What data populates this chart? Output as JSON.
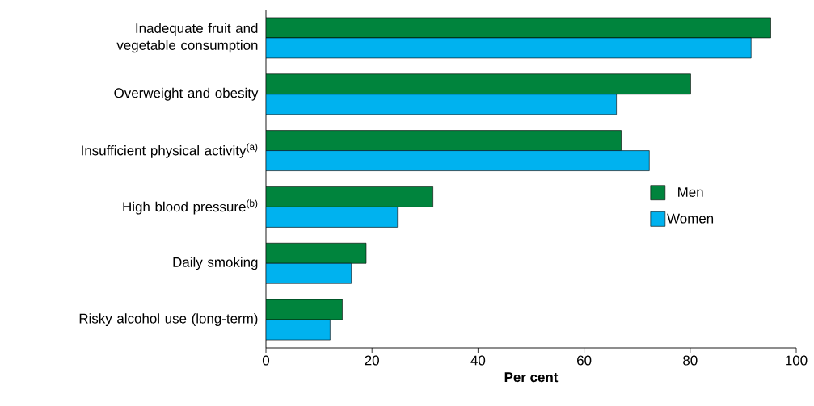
{
  "chart_data": {
    "type": "bar",
    "orientation": "horizontal",
    "xlabel": "Per cent",
    "categories": [
      "Inadequate fruit and vegetable consumption",
      "Overweight and obesity",
      "Insufficient physical activity$^{(a)}$",
      "High blood pressure$^{(b)}$",
      "Daily smoking",
      "Risky alcohol use (long-term)"
    ],
    "series": [
      {
        "name": "Men",
        "color": "#00843d",
        "values": [
          95.2,
          80.1,
          67.0,
          31.5,
          18.9,
          14.4
        ]
      },
      {
        "name": "Women",
        "color": "#00b2ef",
        "values": [
          91.5,
          66.1,
          72.3,
          24.8,
          16.1,
          12.1
        ]
      }
    ],
    "xlim": [
      0,
      100
    ],
    "xticks": [
      0,
      20,
      40,
      60,
      80,
      100
    ],
    "grid": false,
    "legend": "right"
  }
}
